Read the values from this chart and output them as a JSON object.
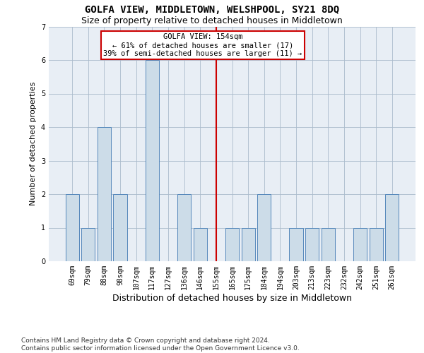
{
  "title": "GOLFA VIEW, MIDDLETOWN, WELSHPOOL, SY21 8DQ",
  "subtitle": "Size of property relative to detached houses in Middletown",
  "xlabel": "Distribution of detached houses by size in Middletown",
  "ylabel": "Number of detached properties",
  "categories": [
    "69sqm",
    "79sqm",
    "88sqm",
    "98sqm",
    "107sqm",
    "117sqm",
    "127sqm",
    "136sqm",
    "146sqm",
    "155sqm",
    "165sqm",
    "175sqm",
    "184sqm",
    "194sqm",
    "203sqm",
    "213sqm",
    "223sqm",
    "232sqm",
    "242sqm",
    "251sqm",
    "261sqm"
  ],
  "values": [
    2,
    1,
    4,
    2,
    0,
    6,
    0,
    2,
    1,
    0,
    1,
    1,
    2,
    0,
    1,
    1,
    1,
    0,
    1,
    1,
    2
  ],
  "bar_color": "#ccdce8",
  "bar_edge_color": "#5588bb",
  "vline_index": 9,
  "vline_color": "#cc0000",
  "annotation_text": "GOLFA VIEW: 154sqm\n← 61% of detached houses are smaller (17)\n39% of semi-detached houses are larger (11) →",
  "annotation_box_color": "#cc0000",
  "ylim": [
    0,
    7
  ],
  "yticks": [
    0,
    1,
    2,
    3,
    4,
    5,
    6,
    7
  ],
  "grid_color": "#aabbcc",
  "bg_color": "#e8eef5",
  "footer": "Contains HM Land Registry data © Crown copyright and database right 2024.\nContains public sector information licensed under the Open Government Licence v3.0.",
  "title_fontsize": 10,
  "subtitle_fontsize": 9,
  "annotation_fontsize": 7.5,
  "ylabel_fontsize": 8,
  "xlabel_fontsize": 9,
  "tick_fontsize": 7,
  "ytick_fontsize": 7,
  "footer_fontsize": 6.5
}
